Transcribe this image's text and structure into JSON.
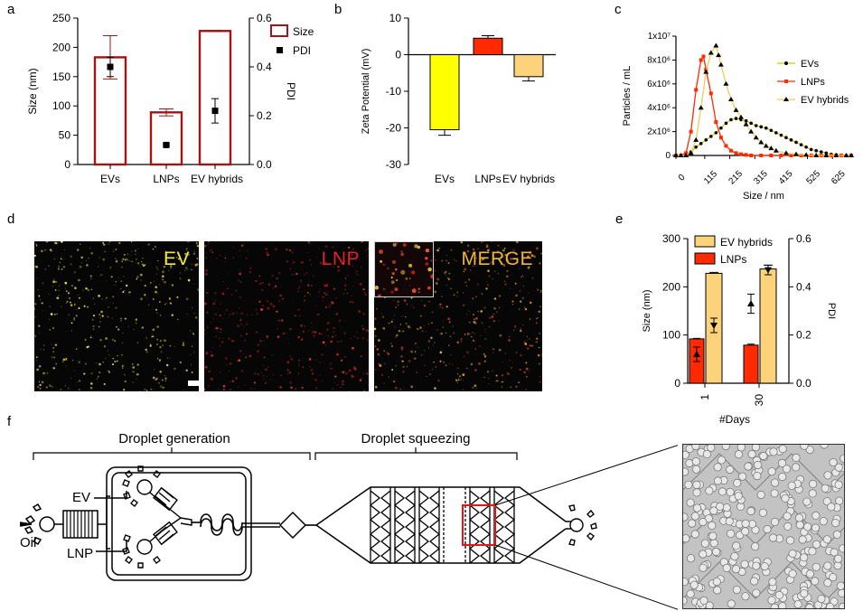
{
  "panel_labels": {
    "a": "a",
    "b": "b",
    "c": "c",
    "d": "d",
    "e": "e",
    "f": "f"
  },
  "colors": {
    "ev": "#ffff00",
    "lnp": "#ff2a00",
    "hybrid": "#fcd27a",
    "size_outline": "#a31515",
    "black": "#000000",
    "evline": "#d7c900"
  },
  "chart_data": [
    {
      "id": "a",
      "type": "bar",
      "categories": [
        "EVs",
        "LNPs",
        "EV hybrids"
      ],
      "series": [
        {
          "name": "Size",
          "axis": "left",
          "values": [
            183,
            89,
            228
          ],
          "err": [
            37,
            6,
            1
          ]
        },
        {
          "name": "PDI",
          "axis": "right",
          "values": [
            0.4,
            0.08,
            0.22
          ],
          "err": [
            0.04,
            0.005,
            0.05
          ]
        }
      ],
      "ylabel": "Size (nm)",
      "ylim": [
        0,
        250
      ],
      "yticks": [
        0,
        50,
        100,
        150,
        200,
        250
      ],
      "y2label": "PDI",
      "y2lim": [
        0,
        0.6
      ],
      "y2ticks": [
        "0.0",
        "0.2",
        "0.4",
        "0.6"
      ],
      "legend": [
        "Size",
        "PDI"
      ],
      "legend_position": "right"
    },
    {
      "id": "b",
      "type": "bar",
      "categories": [
        "EVs",
        "LNPs",
        "EV hybrids"
      ],
      "values": [
        -20.5,
        4.5,
        -6
      ],
      "err": [
        1.5,
        0.7,
        1.2
      ],
      "ylabel": "Zeta Potential (mV)",
      "ylim": [
        -30,
        10
      ],
      "yticks": [
        10,
        0,
        -10,
        -20,
        -30
      ]
    },
    {
      "id": "c",
      "type": "line",
      "xlabel": "Size / nm",
      "ylabel": "Particles / mL",
      "xlim": [
        0,
        700
      ],
      "xticks": [
        0,
        115,
        215,
        315,
        415,
        525,
        625
      ],
      "ylim": [
        0,
        10000000
      ],
      "yticks": [
        "0",
        "2x10⁶",
        "4x10⁶",
        "6x10⁶",
        "8x10⁶",
        "1x10⁷"
      ],
      "series": [
        {
          "name": "EVs",
          "x": [
            0,
            20,
            40,
            60,
            80,
            100,
            120,
            140,
            160,
            180,
            200,
            220,
            240,
            260,
            280,
            300,
            320,
            340,
            360,
            380,
            400,
            420,
            440,
            460,
            480,
            500,
            520,
            540,
            560,
            580,
            600,
            620,
            640,
            660,
            680,
            700
          ],
          "y": [
            0,
            0,
            100000,
            300000,
            700000,
            1000000,
            1300000,
            1600000,
            1900000,
            2300000,
            2700000,
            3000000,
            3100000,
            3000000,
            2900000,
            2700000,
            2500000,
            2400000,
            2300000,
            2100000,
            1900000,
            1700000,
            1500000,
            1300000,
            1100000,
            900000,
            700000,
            500000,
            400000,
            300000,
            200000,
            100000,
            50000,
            20000,
            0,
            0
          ]
        },
        {
          "name": "LNPs",
          "x": [
            0,
            20,
            40,
            60,
            80,
            100,
            110,
            120,
            140,
            160,
            180,
            200,
            220,
            240,
            260,
            280,
            300,
            340,
            380,
            420,
            460,
            500,
            540,
            580,
            620,
            660,
            700
          ],
          "y": [
            0,
            0,
            200000,
            2000000,
            5500000,
            8000000,
            8300000,
            7200000,
            5200000,
            2800000,
            1500000,
            800000,
            400000,
            200000,
            100000,
            50000,
            0,
            0,
            0,
            0,
            0,
            0,
            0,
            0,
            0,
            0,
            0
          ]
        },
        {
          "name": "EV hybrids",
          "x": [
            0,
            20,
            40,
            60,
            80,
            100,
            120,
            140,
            160,
            170,
            180,
            200,
            220,
            240,
            260,
            280,
            300,
            320,
            340,
            360,
            380,
            400,
            440,
            480,
            520,
            560,
            600,
            640,
            680,
            700
          ],
          "y": [
            0,
            0,
            0,
            200000,
            1300000,
            4000000,
            7000000,
            8600000,
            9200000,
            8400000,
            7600000,
            6000000,
            4700000,
            3800000,
            3200000,
            2600000,
            2000000,
            1500000,
            1100000,
            800000,
            600000,
            400000,
            200000,
            100000,
            50000,
            0,
            0,
            0,
            0,
            0
          ]
        }
      ],
      "legend": [
        "EVs",
        "LNPs",
        "EV hybrids"
      ],
      "legend_position": "right"
    },
    {
      "id": "e",
      "type": "bar",
      "categories": [
        "1",
        "30"
      ],
      "xlabel": "#Days",
      "series": [
        {
          "name": "LNPs",
          "axis": "left",
          "values": [
            92,
            79
          ],
          "err": [
            1,
            2
          ]
        },
        {
          "name": "EV hybrids",
          "axis": "left",
          "values": [
            228,
            237
          ],
          "err": [
            2,
            8
          ]
        },
        {
          "name": "LNPs PDI",
          "axis": "right",
          "values": [
            0.12,
            0.33
          ],
          "err": [
            0.03,
            0.04
          ]
        },
        {
          "name": "EV hybrids PDI",
          "axis": "right",
          "values": [
            0.24,
            0.47
          ],
          "err": [
            0.03,
            0.02
          ]
        }
      ],
      "ylabel": "Size (nm)",
      "ylim": [
        0,
        300
      ],
      "yticks": [
        0,
        100,
        200,
        300
      ],
      "y2label": "PDI",
      "y2lim": [
        0,
        0.6
      ],
      "y2ticks": [
        "0.0",
        "0.2",
        "0.4",
        "0.6"
      ],
      "legend": [
        "EV hybrids",
        "LNPs"
      ],
      "legend_position": "top-left"
    }
  ],
  "micrographs": {
    "ev": "EV",
    "lnp": "LNP",
    "merge": "MERGE"
  },
  "schematic": {
    "generation": "Droplet generation",
    "squeezing": "Droplet squeezing",
    "oil": "Oil",
    "ev": "EV",
    "lnp": "LNP"
  }
}
